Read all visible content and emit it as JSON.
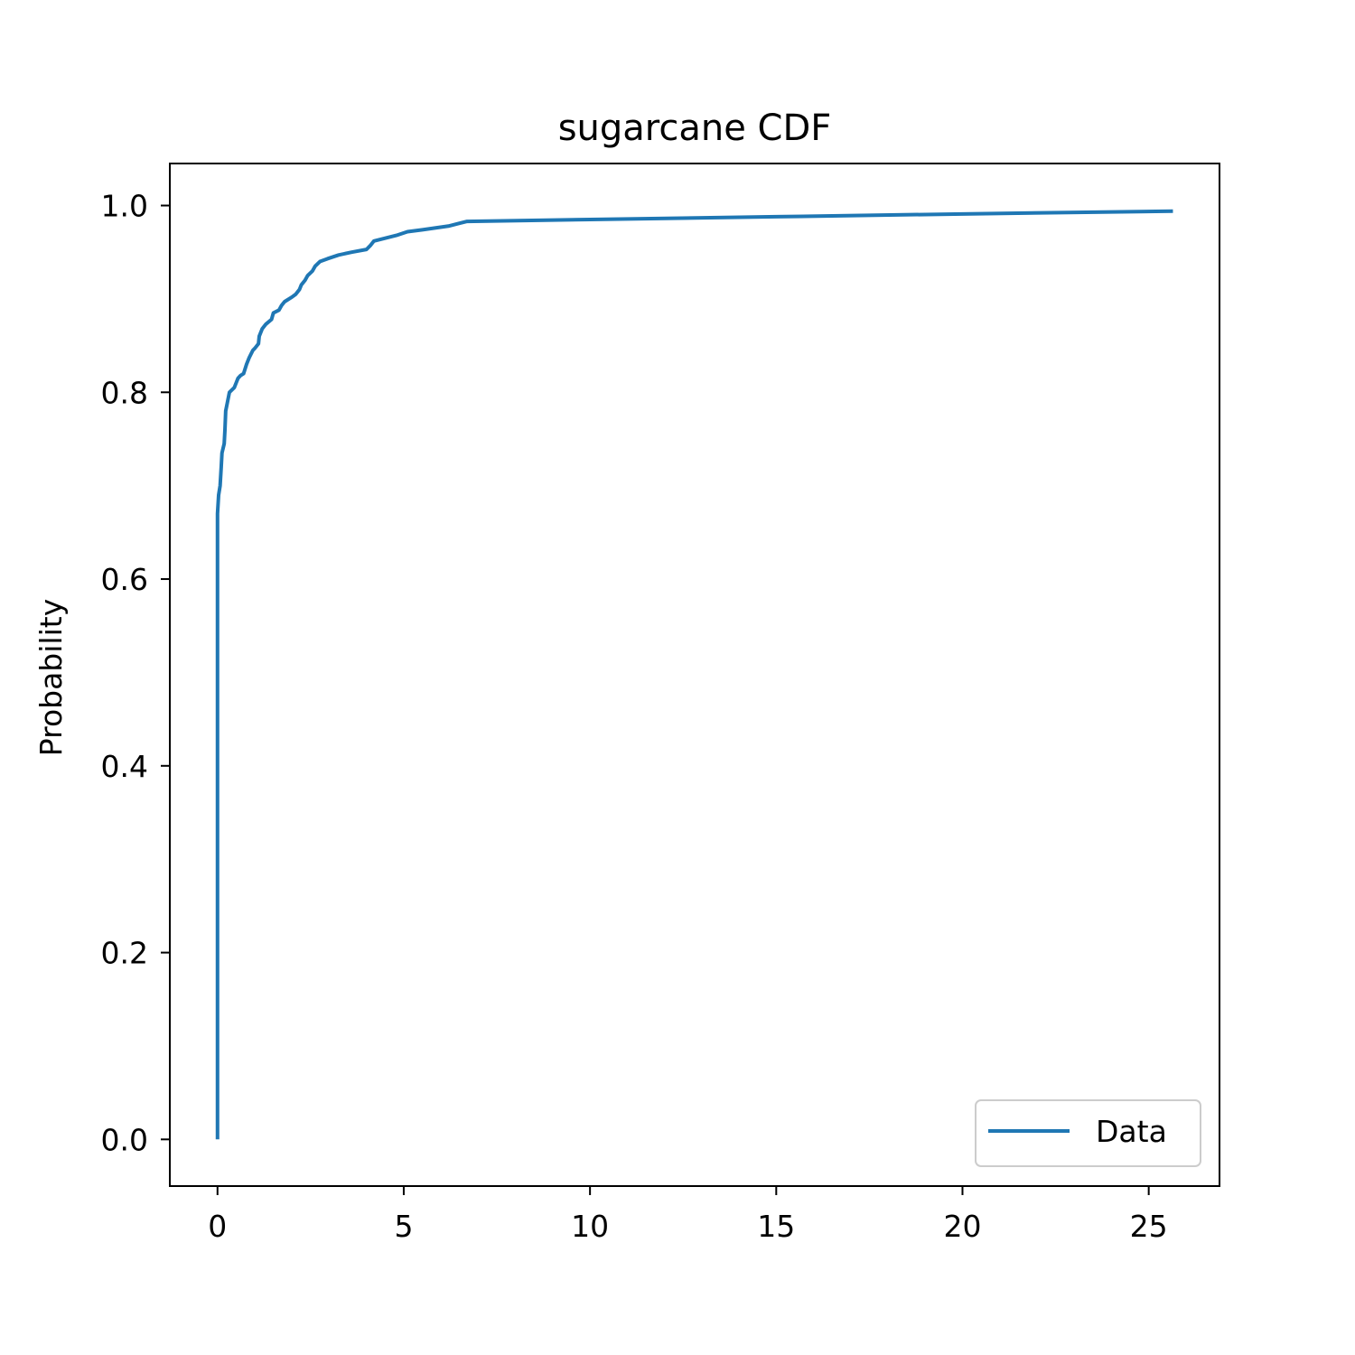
{
  "chart_data": {
    "type": "line",
    "title": "sugarcane CDF",
    "xlabel": "",
    "ylabel": "Probability",
    "xlim": [
      -1.28,
      26.9
    ],
    "ylim": [
      -0.05,
      1.045
    ],
    "x_ticks": [
      0,
      5,
      10,
      15,
      20,
      25
    ],
    "x_tick_labels": [
      "0",
      "5",
      "10",
      "15",
      "20",
      "25"
    ],
    "y_ticks": [
      0.0,
      0.2,
      0.4,
      0.6,
      0.8,
      1.0
    ],
    "y_tick_labels": [
      "0.0",
      "0.2",
      "0.4",
      "0.6",
      "0.8",
      "1.0"
    ],
    "grid": false,
    "legend_position": "lower-right",
    "series": [
      {
        "name": "Data",
        "color": "#1f77b4",
        "points": [
          [
            0.0,
            0.0
          ],
          [
            0.0,
            0.67
          ],
          [
            0.03,
            0.69
          ],
          [
            0.07,
            0.7
          ],
          [
            0.1,
            0.72
          ],
          [
            0.12,
            0.735
          ],
          [
            0.18,
            0.745
          ],
          [
            0.2,
            0.76
          ],
          [
            0.22,
            0.78
          ],
          [
            0.27,
            0.79
          ],
          [
            0.32,
            0.8
          ],
          [
            0.45,
            0.805
          ],
          [
            0.5,
            0.81
          ],
          [
            0.55,
            0.815
          ],
          [
            0.62,
            0.818
          ],
          [
            0.7,
            0.82
          ],
          [
            0.78,
            0.83
          ],
          [
            0.85,
            0.837
          ],
          [
            0.95,
            0.845
          ],
          [
            1.0,
            0.847
          ],
          [
            1.1,
            0.852
          ],
          [
            1.12,
            0.86
          ],
          [
            1.2,
            0.868
          ],
          [
            1.3,
            0.873
          ],
          [
            1.45,
            0.878
          ],
          [
            1.5,
            0.885
          ],
          [
            1.65,
            0.888
          ],
          [
            1.72,
            0.893
          ],
          [
            1.8,
            0.897
          ],
          [
            2.0,
            0.902
          ],
          [
            2.1,
            0.905
          ],
          [
            2.2,
            0.91
          ],
          [
            2.25,
            0.915
          ],
          [
            2.35,
            0.92
          ],
          [
            2.42,
            0.925
          ],
          [
            2.55,
            0.93
          ],
          [
            2.62,
            0.935
          ],
          [
            2.75,
            0.94
          ],
          [
            2.95,
            0.943
          ],
          [
            3.25,
            0.947
          ],
          [
            3.6,
            0.95
          ],
          [
            4.0,
            0.953
          ],
          [
            4.1,
            0.957
          ],
          [
            4.2,
            0.962
          ],
          [
            4.5,
            0.965
          ],
          [
            4.8,
            0.968
          ],
          [
            5.1,
            0.972
          ],
          [
            5.5,
            0.974
          ],
          [
            6.2,
            0.978
          ],
          [
            6.7,
            0.983
          ],
          [
            10.0,
            0.985
          ],
          [
            15.0,
            0.988
          ],
          [
            20.0,
            0.991
          ],
          [
            25.65,
            0.994
          ]
        ]
      }
    ]
  }
}
